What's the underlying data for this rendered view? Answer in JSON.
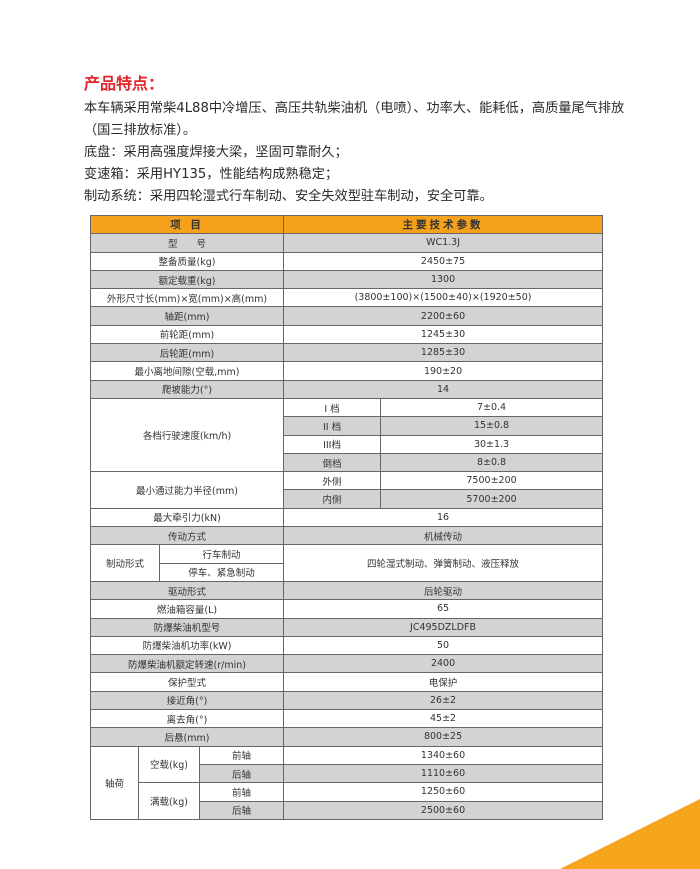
{
  "intro": {
    "title": "产品特点：",
    "lines": [
      "本车辆采用常柴4L88中冷增压、高压共轨柴油机（电喷）、功率大、能耗低，高质量尾气排放",
      "（国三排放标准）。",
      "底盘：采用高强度焊接大梁，坚固可靠耐久；",
      "变速箱：采用HY135，性能结构成熟稳定；",
      "制动系统：采用四轮湿式行车制动、安全失效型驻车制动，安全可靠。"
    ]
  },
  "colors": {
    "header": "#f5a11c",
    "title": "#e0262a",
    "shade": "#d3d3d3"
  },
  "table": {
    "rows": [
      [
        {
          "t": "项 目",
          "c": 4,
          "h": 1
        },
        {
          "t": "主要技术参数",
          "c": 2,
          "h": 1
        }
      ],
      [
        {
          "t": "型　　号",
          "c": 4,
          "g": 1
        },
        {
          "t": "WC1.3J",
          "c": 2,
          "g": 1
        }
      ],
      [
        {
          "t": "整备质量(kg)",
          "c": 4
        },
        {
          "t": "2450±75",
          "c": 2
        }
      ],
      [
        {
          "t": "额定载重(kg)",
          "c": 4,
          "g": 1
        },
        {
          "t": "1300",
          "c": 2,
          "g": 1
        }
      ],
      [
        {
          "t": "外形尺寸长(mm)×宽(mm)×高(mm)",
          "c": 4
        },
        {
          "t": "(3800±100)×(1500±40)×(1920±50)",
          "c": 2
        }
      ],
      [
        {
          "t": "轴距(mm)",
          "c": 4,
          "g": 1
        },
        {
          "t": "2200±60",
          "c": 2,
          "g": 1
        }
      ],
      [
        {
          "t": "前轮距(mm)",
          "c": 4
        },
        {
          "t": "1245±30",
          "c": 2
        }
      ],
      [
        {
          "t": "后轮距(mm)",
          "c": 4,
          "g": 1
        },
        {
          "t": "1285±30",
          "c": 2,
          "g": 1
        }
      ],
      [
        {
          "t": "最小离地间隙(空载,mm)",
          "c": 4
        },
        {
          "t": "190±20",
          "c": 2
        }
      ],
      [
        {
          "t": "爬坡能力(°)",
          "c": 4,
          "g": 1
        },
        {
          "t": "14",
          "c": 2,
          "g": 1
        }
      ],
      [
        {
          "t": "各档行驶速度(km/h)",
          "c": 4,
          "r": 4
        },
        {
          "t": "I 档"
        },
        {
          "t": "7±0.4"
        }
      ],
      [
        {
          "t": "II 档",
          "g": 1
        },
        {
          "t": "15±0.8",
          "g": 1
        }
      ],
      [
        {
          "t": "III档"
        },
        {
          "t": "30±1.3"
        }
      ],
      [
        {
          "t": "倒档",
          "g": 1
        },
        {
          "t": "8±0.8",
          "g": 1
        }
      ],
      [
        {
          "t": "最小通过能力半径(mm)",
          "c": 4,
          "r": 2
        },
        {
          "t": "外侧"
        },
        {
          "t": "7500±200"
        }
      ],
      [
        {
          "t": "内侧",
          "g": 1
        },
        {
          "t": "5700±200",
          "g": 1
        }
      ],
      [
        {
          "t": "最大牵引力(kN)",
          "c": 4
        },
        {
          "t": "16",
          "c": 2
        }
      ],
      [
        {
          "t": "传动方式",
          "c": 4,
          "g": 1
        },
        {
          "t": "机械传动",
          "c": 2,
          "g": 1
        }
      ],
      [
        {
          "t": "制动形式",
          "c": 2,
          "r": 2
        },
        {
          "t": "行车制动",
          "c": 2
        },
        {
          "t": "四轮湿式制动、弹簧制动、液压释放",
          "c": 2,
          "r": 2
        }
      ],
      [
        {
          "t": "停车、紧急制动",
          "c": 2
        }
      ],
      [
        {
          "t": "驱动形式",
          "c": 4,
          "g": 1
        },
        {
          "t": "后轮驱动",
          "c": 2,
          "g": 1
        }
      ],
      [
        {
          "t": "燃油箱容量(L)",
          "c": 4
        },
        {
          "t": "65",
          "c": 2
        }
      ],
      [
        {
          "t": "防爆柴油机型号",
          "c": 4,
          "g": 1
        },
        {
          "t": "JC495DZLDFB",
          "c": 2,
          "g": 1
        }
      ],
      [
        {
          "t": "防爆柴油机功率(kW)",
          "c": 4
        },
        {
          "t": "50",
          "c": 2
        }
      ],
      [
        {
          "t": "防爆柴油机额定转速(r/min)",
          "c": 4,
          "g": 1
        },
        {
          "t": "2400",
          "c": 2,
          "g": 1
        }
      ],
      [
        {
          "t": "保护型式",
          "c": 4
        },
        {
          "t": "电保护",
          "c": 2
        }
      ],
      [
        {
          "t": "接近角(°)",
          "c": 4,
          "g": 1
        },
        {
          "t": "26±2",
          "c": 2,
          "g": 1
        }
      ],
      [
        {
          "t": "离去角(°)",
          "c": 4
        },
        {
          "t": "45±2",
          "c": 2
        }
      ],
      [
        {
          "t": "后悬(mm)",
          "c": 4,
          "g": 1
        },
        {
          "t": "800±25",
          "c": 2,
          "g": 1
        }
      ],
      [
        {
          "t": "轴荷",
          "r": 4
        },
        {
          "t": "空载(kg)",
          "c": 2,
          "r": 2
        },
        {
          "t": "前轴"
        },
        {
          "t": "1340±60",
          "c": 2
        }
      ],
      [
        {
          "t": "后轴",
          "g": 1
        },
        {
          "t": "1110±60",
          "c": 2,
          "g": 1
        }
      ],
      [
        {
          "t": "满载(kg)",
          "c": 2,
          "r": 2
        },
        {
          "t": "前轴"
        },
        {
          "t": "1250±60",
          "c": 2
        }
      ],
      [
        {
          "t": "后轴",
          "g": 1
        },
        {
          "t": "2500±60",
          "c": 2,
          "g": 1
        }
      ]
    ]
  }
}
